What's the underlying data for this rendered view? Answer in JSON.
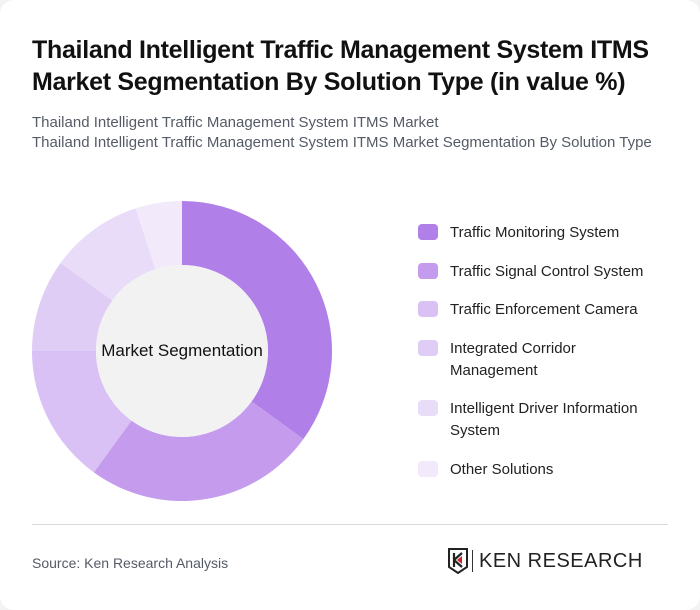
{
  "header": {
    "title": "Thailand Intelligent Traffic Management System ITMS Market Segmentation By Solution Type (in value %)",
    "subtitle_line1": "Thailand Intelligent Traffic Management System ITMS Market",
    "subtitle_line2": "Thailand Intelligent Traffic Management System ITMS Market Segmentation By Solution Type"
  },
  "chart": {
    "center_label": "Market Segmentation"
  },
  "legend": [
    {
      "label": "Traffic Monitoring System",
      "color": "#b17fe8"
    },
    {
      "label": "Traffic Signal Control System",
      "color": "#c49bed"
    },
    {
      "label": "Traffic Enforcement Camera",
      "color": "#d9c0f5"
    },
    {
      "label": "Integrated Corridor Management",
      "color": "#e0cdf6"
    },
    {
      "label": "Intelligent Driver Information System",
      "color": "#e9dcf9"
    },
    {
      "label": "Other Solutions",
      "color": "#f2eafb"
    }
  ],
  "footer": {
    "source": "Source: Ken Research Analysis",
    "logo_text": "KEN RESEARCH"
  },
  "chart_data": {
    "type": "pie",
    "donut": true,
    "title": "Thailand Intelligent Traffic Management System ITMS Market Segmentation By Solution Type (in value %)",
    "center_label": "Market Segmentation",
    "categories": [
      "Traffic Monitoring System",
      "Traffic Signal Control System",
      "Traffic Enforcement Camera",
      "Integrated Corridor Management",
      "Intelligent Driver Information System",
      "Other Solutions"
    ],
    "values": [
      35,
      25,
      15,
      10,
      10,
      5
    ],
    "colors": [
      "#b17fe8",
      "#c49bed",
      "#d9c0f5",
      "#e0cdf6",
      "#e9dcf9",
      "#f2eafb"
    ],
    "legend_position": "right"
  }
}
